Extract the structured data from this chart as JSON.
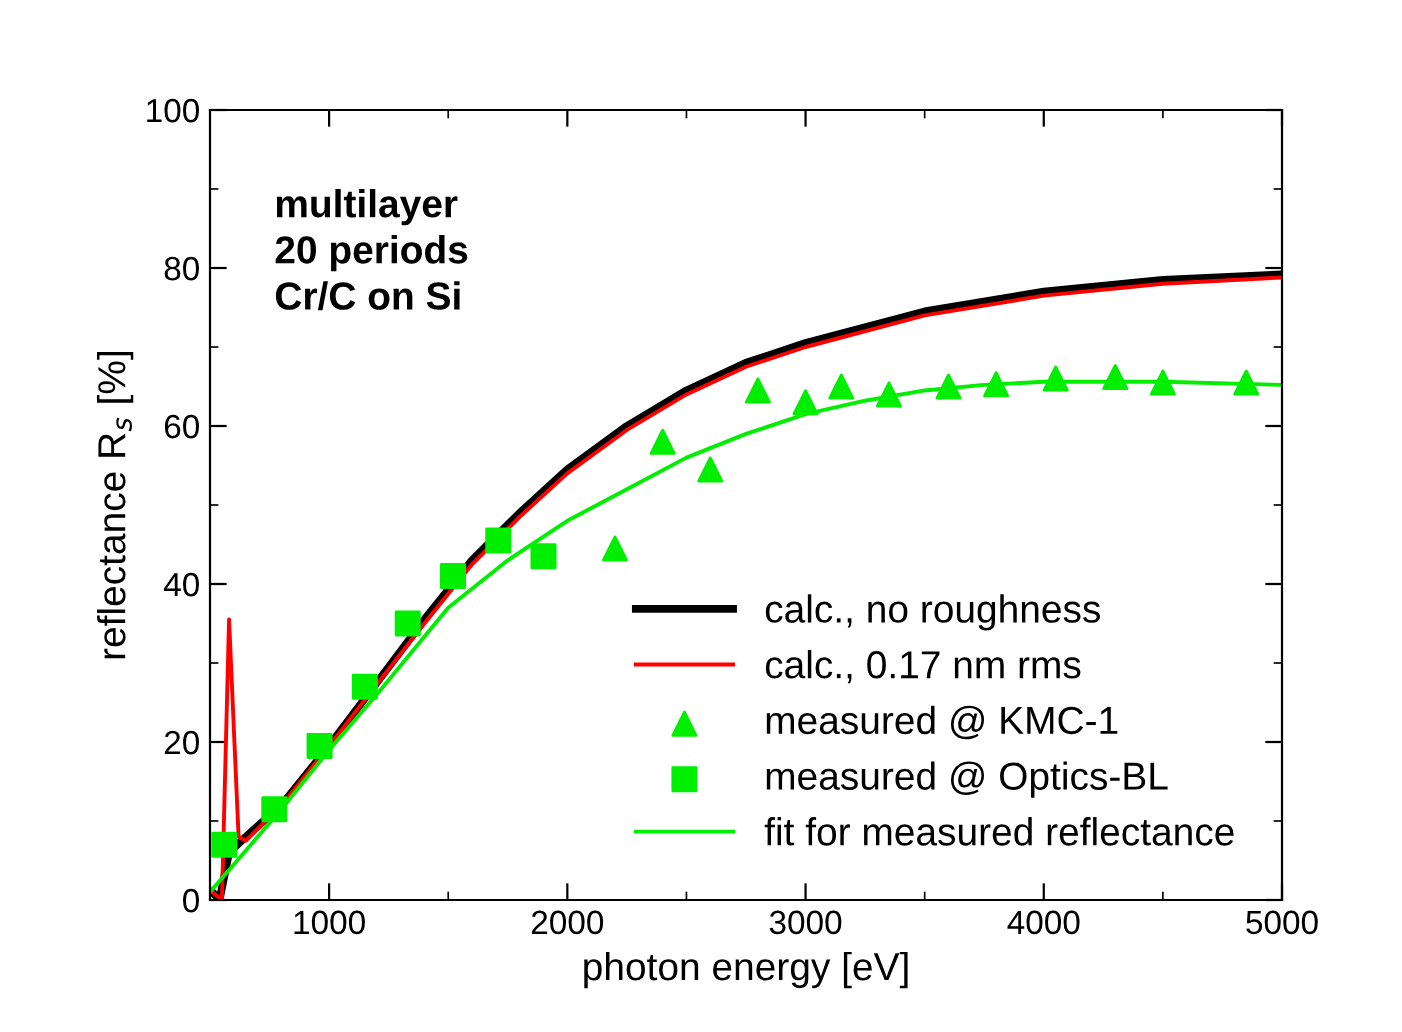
{
  "chart_data": {
    "type": "line",
    "xlabel": "photon energy [eV]",
    "ylabel": "reflectance R$_{s}$ [%]",
    "xlim": [
      500,
      5000
    ],
    "ylim": [
      0,
      100
    ],
    "xticks": [
      1000,
      2000,
      3000,
      4000,
      5000
    ],
    "yticks": [
      0,
      20,
      40,
      60,
      80,
      100
    ],
    "grid": false,
    "legend": "bottom right",
    "annotations": [
      "multilayer\n20 periods\nCr/C on Si"
    ],
    "series": [
      {
        "name": "calc., no roughness",
        "color": "#000000",
        "marker": "none",
        "x": [
          510,
          540,
          580,
          650,
          800,
          1000,
          1200,
          1400,
          1600,
          1800,
          2000,
          2250,
          2500,
          2750,
          3000,
          3500,
          4000,
          4500,
          5000
        ],
        "values": [
          1,
          0,
          6,
          8,
          12,
          19.5,
          27.5,
          35.5,
          43,
          49,
          54.5,
          60,
          64.5,
          68,
          70.5,
          74.5,
          77,
          78.5,
          79.2
        ]
      },
      {
        "name": "calc., 0.17 nm rms",
        "color": "#ff0000",
        "marker": "none",
        "x": [
          510,
          550,
          580,
          620,
          650,
          800,
          1000,
          1200,
          1400,
          1600,
          1800,
          2000,
          2250,
          2500,
          2750,
          3000,
          3500,
          4000,
          4500,
          5000
        ],
        "values": [
          1,
          0,
          35.5,
          8,
          7.5,
          12,
          19.5,
          27.3,
          35,
          42.5,
          48.5,
          54,
          59.5,
          64,
          67.5,
          70,
          74,
          76.5,
          78,
          78.8
        ]
      },
      {
        "name": "measured @ KMC-1",
        "color": "#00ee00",
        "type": "scatter",
        "marker": "triangle",
        "x": [
          2200,
          2400,
          2600,
          2800,
          3000,
          3150,
          3350,
          3600,
          3800,
          4050,
          4300,
          4500,
          4850
        ],
        "values": [
          44.5,
          58,
          54.5,
          64.5,
          63,
          65,
          64,
          65,
          65.3,
          66,
          66.2,
          65.5,
          65.5
        ]
      },
      {
        "name": "measured @ Optics-BL",
        "color": "#00ee00",
        "type": "scatter",
        "marker": "square",
        "x": [
          560,
          770,
          960,
          1150,
          1330,
          1520,
          1710,
          1900
        ],
        "values": [
          7,
          11.5,
          19.5,
          27,
          35,
          41,
          45.5,
          43.5
        ]
      },
      {
        "name": "fit for measured reflectance",
        "color": "#00ee00",
        "marker": "none",
        "x": [
          500,
          600,
          700,
          800,
          1000,
          1200,
          1500,
          1750,
          2000,
          2250,
          2500,
          2750,
          3000,
          3250,
          3500,
          3750,
          4000,
          4500,
          5000
        ],
        "values": [
          1,
          4.5,
          8,
          11.5,
          19,
          26,
          37,
          43,
          48,
          52,
          56,
          59,
          61.5,
          63.2,
          64.5,
          65.2,
          65.6,
          65.6,
          65.2
        ]
      }
    ]
  }
}
